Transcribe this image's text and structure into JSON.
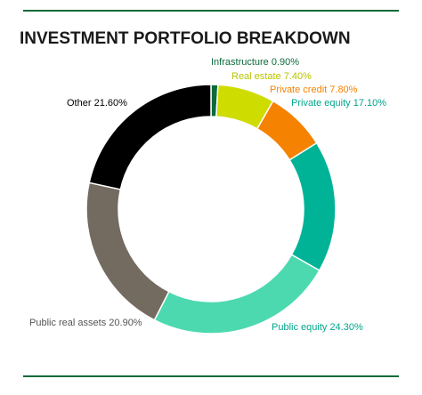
{
  "chart_data": {
    "type": "donut",
    "title": "INVESTMENT PORTFOLIO BREAKDOWN",
    "categories": [
      "Infrastructure",
      "Real estate",
      "Private credit",
      "Private equity",
      "Public equity",
      "Public real assets",
      "Other"
    ],
    "values": [
      0.9,
      7.4,
      7.8,
      17.1,
      24.3,
      20.9,
      21.6
    ],
    "value_labels": [
      "0.90%",
      "7.40%",
      "7.80%",
      "17.10%",
      "24.30%",
      "20.90%",
      "21.60%"
    ],
    "colors": [
      "#0b6b3a",
      "#cfdc00",
      "#f58200",
      "#00b396",
      "#4cd9b0",
      "#736a60",
      "#000000"
    ]
  }
}
